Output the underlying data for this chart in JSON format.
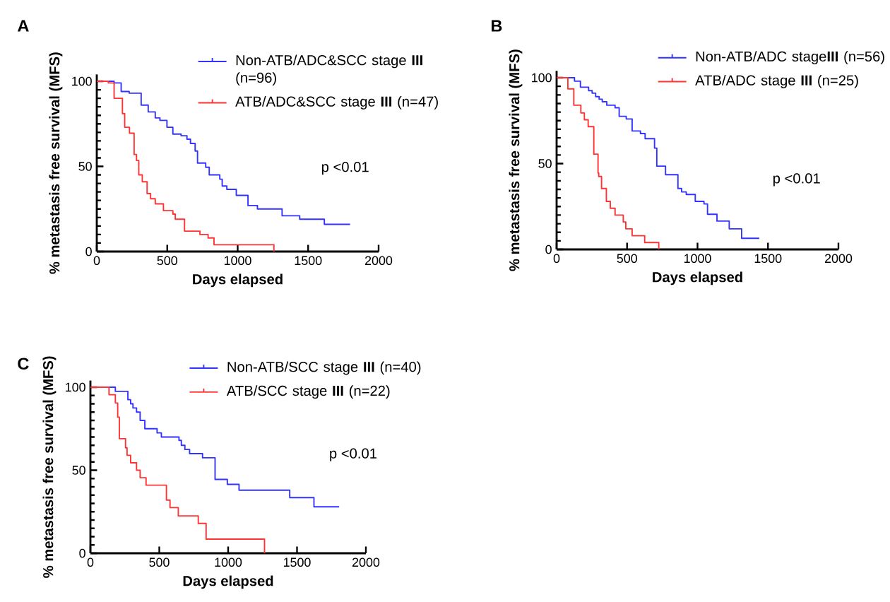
{
  "chart_data": [
    {
      "type": "step",
      "title": "A",
      "xlabel": "Days elapsed",
      "ylabel": "% metastasis free survival (MFS)",
      "xlim": [
        0,
        2000
      ],
      "ylim": [
        0,
        104
      ],
      "xticks": [
        0,
        500,
        1000,
        1500,
        2000
      ],
      "yticks": [
        0,
        50,
        100
      ],
      "legend": "top right",
      "annotations": [
        "p <0.01"
      ],
      "series": [
        {
          "name": "Non-ATB/ADC&SCC stage **III** (n=96)",
          "color": "#3333ff",
          "x": [
            0,
            123,
            173,
            230,
            315,
            365,
            415,
            448,
            498,
            540,
            598,
            640,
            665,
            698,
            715,
            773,
            798,
            873,
            890,
            923,
            990,
            1073,
            1140,
            1315,
            1440,
            1615,
            1798
          ],
          "values": [
            100,
            99,
            94,
            93,
            86,
            82,
            78.5,
            77,
            73,
            69,
            68,
            66,
            63.5,
            59,
            52,
            49.5,
            45,
            42.5,
            38.5,
            36.5,
            33,
            27,
            25,
            21,
            19,
            16,
            16
          ]
        },
        {
          "name": "ATB/ADC&SCC stage **III** (n=47)",
          "color": "#ff3333",
          "x": [
            0,
            82,
            123,
            182,
            198,
            232,
            265,
            282,
            298,
            323,
            357,
            382,
            415,
            473,
            540,
            557,
            623,
            732,
            790,
            832,
            1257,
            1257
          ],
          "values": [
            100,
            99,
            90,
            81,
            73,
            69.5,
            57,
            53.5,
            45,
            41,
            34,
            31,
            28,
            24,
            22,
            19,
            12,
            10,
            8,
            4,
            4,
            0
          ]
        }
      ]
    },
    {
      "type": "step",
      "title": "B",
      "xlabel": "Days elapsed",
      "ylabel": "% metastasis free survival (MFS)",
      "xlim": [
        0,
        2000
      ],
      "ylim": [
        0,
        104
      ],
      "xticks": [
        0,
        500,
        1000,
        1500,
        2000
      ],
      "yticks": [
        0,
        50,
        100
      ],
      "legend": "top right",
      "annotations": [
        "p <0.01"
      ],
      "series": [
        {
          "name": "Non-ATB/ADC stage**III** (n=56)",
          "color": "#3333ff",
          "x": [
            0,
            127,
            169,
            227,
            252,
            277,
            302,
            324,
            356,
            415,
            444,
            494,
            536,
            595,
            628,
            695,
            711,
            773,
            861,
            887,
            920,
            984,
            1046,
            1071,
            1138,
            1225,
            1313,
            1438
          ],
          "values": [
            100,
            98,
            94.5,
            92.5,
            91,
            89,
            87.5,
            86,
            84,
            82.5,
            77.5,
            76,
            69,
            67.5,
            64.5,
            59,
            48.5,
            43.5,
            35.5,
            33.5,
            32,
            28,
            26.5,
            20.5,
            16.5,
            12,
            6.5,
            6.5
          ]
        },
        {
          "name": "ATB/ADC stage **III** (n=25)",
          "color": "#ff3333",
          "x": [
            0,
            80,
            122,
            172,
            197,
            224,
            264,
            294,
            299,
            319,
            353,
            381,
            415,
            473,
            491,
            536,
            625,
            725,
            725
          ],
          "values": [
            100,
            93.5,
            84,
            79.5,
            75.5,
            71.5,
            55.5,
            44.5,
            42.5,
            35.5,
            28,
            24,
            20,
            16,
            12,
            8,
            4,
            4,
            0
          ]
        }
      ]
    },
    {
      "type": "step",
      "title": "C",
      "xlabel": "Days elapsed",
      "ylabel": "% metastasis free survival (MFS)",
      "xlim": [
        0,
        2000
      ],
      "ylim": [
        0,
        104
      ],
      "xticks": [
        0,
        500,
        1000,
        1500,
        2000
      ],
      "yticks": [
        0,
        50,
        100
      ],
      "legend": "top right",
      "annotations": [
        "p <0.01"
      ],
      "series": [
        {
          "name": "Non-ATB/SCC stage **III** (n=40)",
          "color": "#3333ff",
          "x": [
            0,
            181,
            272,
            292,
            309,
            335,
            361,
            395,
            484,
            515,
            643,
            660,
            686,
            720,
            814,
            905,
            994,
            1079,
            1447,
            1623,
            1806
          ],
          "values": [
            100,
            97.5,
            92.5,
            90,
            87.5,
            85,
            80,
            75,
            72.5,
            70,
            68,
            65,
            62.5,
            60,
            57.5,
            44.5,
            41.5,
            38,
            33.5,
            28,
            28
          ]
        },
        {
          "name": "ATB/SCC stage **III** (n=22)",
          "color": "#ff3333",
          "x": [
            0,
            135,
            181,
            198,
            210,
            255,
            266,
            292,
            335,
            361,
            404,
            552,
            578,
            638,
            783,
            840,
            1264,
            1264
          ],
          "values": [
            100,
            95.5,
            90.5,
            82,
            69,
            63.5,
            59,
            54.5,
            50,
            45.5,
            41,
            32,
            27.5,
            22.5,
            18,
            8.5,
            8.5,
            0
          ]
        }
      ]
    }
  ]
}
